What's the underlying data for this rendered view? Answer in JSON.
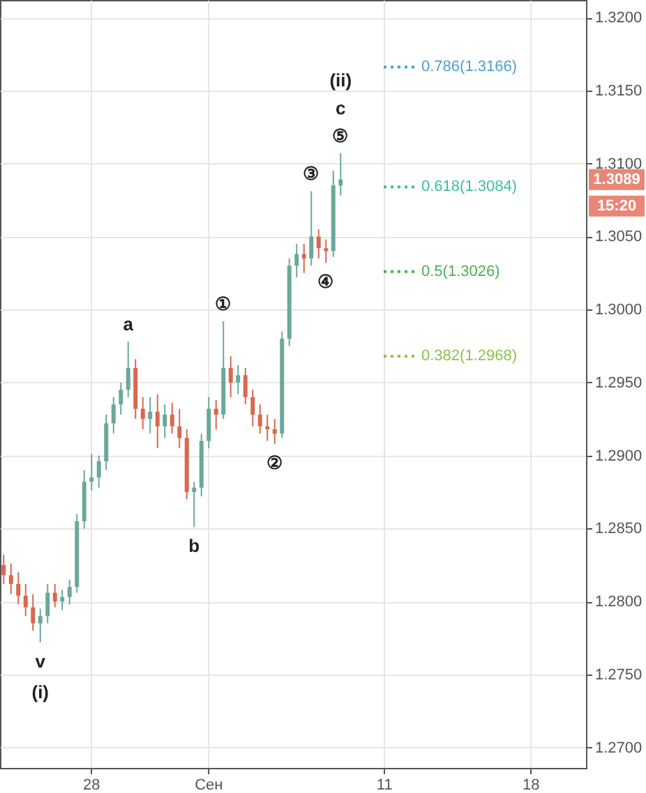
{
  "chart_data": {
    "type": "candlestick",
    "categories": [
      null,
      null,
      null,
      null,
      null,
      null,
      null,
      null,
      null,
      null,
      null,
      null,
      "28",
      null,
      null,
      null,
      null,
      null,
      null,
      null,
      null,
      null,
      null,
      null,
      null,
      null,
      null,
      null,
      "Сен",
      null,
      null,
      null,
      null,
      null,
      null,
      null,
      null,
      null,
      null,
      null,
      null,
      null,
      null,
      null,
      null,
      null,
      null,
      null,
      null,
      null,
      null,
      null,
      "11",
      null,
      null,
      null,
      null,
      null,
      null,
      null,
      null,
      null,
      null,
      null,
      null,
      null,
      null,
      null,
      null,
      null,
      null,
      null,
      "18",
      null,
      null,
      null,
      null,
      null,
      null,
      null
    ],
    "ohlc": [
      [
        1.2825,
        1.2832,
        1.2812,
        1.2818
      ],
      [
        1.2818,
        1.2826,
        1.2805,
        1.2812
      ],
      [
        1.2812,
        1.282,
        1.2798,
        1.2804
      ],
      [
        1.2804,
        1.2812,
        1.279,
        1.2796
      ],
      [
        1.2796,
        1.2805,
        1.278,
        1.2785
      ],
      [
        1.2785,
        1.2795,
        1.2772,
        1.279
      ],
      [
        1.279,
        1.2812,
        1.2785,
        1.2806
      ],
      [
        1.2806,
        1.2812,
        1.2796,
        1.28
      ],
      [
        1.28,
        1.2808,
        1.2794,
        1.2803
      ],
      [
        1.2803,
        1.2815,
        1.2798,
        1.281
      ],
      [
        1.281,
        1.286,
        1.2806,
        1.2855
      ],
      [
        1.2855,
        1.289,
        1.285,
        1.2882
      ],
      [
        1.2882,
        1.2901,
        1.2876,
        1.2885
      ],
      [
        1.2885,
        1.29,
        1.2878,
        1.2896
      ],
      [
        1.2896,
        1.2928,
        1.289,
        1.2922
      ],
      [
        1.2922,
        1.294,
        1.2915,
        1.2935
      ],
      [
        1.2935,
        1.295,
        1.2928,
        1.2945
      ],
      [
        1.2945,
        1.2978,
        1.294,
        1.296
      ],
      [
        1.296,
        1.2966,
        1.2925,
        1.2932
      ],
      [
        1.2932,
        1.294,
        1.2918,
        1.2925
      ],
      [
        1.2925,
        1.294,
        1.2915,
        1.293
      ],
      [
        1.293,
        1.2942,
        1.2905,
        1.292
      ],
      [
        1.292,
        1.2935,
        1.2912,
        1.2928
      ],
      [
        1.2928,
        1.2936,
        1.2915,
        1.292
      ],
      [
        1.292,
        1.2932,
        1.2905,
        1.2912
      ],
      [
        1.2912,
        1.2918,
        1.287,
        1.2875
      ],
      [
        1.2875,
        1.2882,
        1.2851,
        1.2878
      ],
      [
        1.2878,
        1.2915,
        1.2872,
        1.291
      ],
      [
        1.291,
        1.294,
        1.2905,
        1.2932
      ],
      [
        1.2932,
        1.2938,
        1.2918,
        1.2928
      ],
      [
        1.2928,
        1.2992,
        1.2925,
        1.296
      ],
      [
        1.296,
        1.2968,
        1.294,
        1.295
      ],
      [
        1.295,
        1.2962,
        1.2942,
        1.2955
      ],
      [
        1.2955,
        1.296,
        1.2935,
        1.294
      ],
      [
        1.294,
        1.2945,
        1.292,
        1.2928
      ],
      [
        1.2928,
        1.2935,
        1.2915,
        1.292
      ],
      [
        1.292,
        1.2928,
        1.291,
        1.2918
      ],
      [
        1.2918,
        1.2925,
        1.2908,
        1.2915
      ],
      [
        1.2915,
        1.2985,
        1.2912,
        1.298
      ],
      [
        1.298,
        1.3035,
        1.2975,
        1.303
      ],
      [
        1.303,
        1.3045,
        1.3022,
        1.3038
      ],
      [
        1.3038,
        1.3045,
        1.3025,
        1.3035
      ],
      [
        1.3035,
        1.3081,
        1.303,
        1.305
      ],
      [
        1.305,
        1.3055,
        1.3035,
        1.3042
      ],
      [
        1.3042,
        1.3048,
        1.3032,
        1.304
      ],
      [
        1.304,
        1.3095,
        1.3036,
        1.3085
      ],
      [
        1.3085,
        1.3107,
        1.3078,
        1.3089
      ],
      null,
      null,
      null,
      null,
      null,
      null,
      null,
      null,
      null,
      null,
      null,
      null,
      null,
      null,
      null,
      null,
      null,
      null,
      null,
      null,
      null,
      null,
      null,
      null,
      null,
      null,
      null,
      null,
      null,
      null,
      null,
      null,
      null
    ],
    "colors": [
      "#d9684e",
      "#d9684e",
      "#d9684e",
      "#d9684e",
      "#d9684e",
      "#6aa89a",
      "#6aa89a",
      "#d9684e",
      "#6aa89a",
      "#6aa89a",
      "#6aa89a",
      "#6aa89a",
      "#6aa89a",
      "#6aa89a",
      "#6aa89a",
      "#6aa89a",
      "#6aa89a",
      "#6aa89a",
      "#d9684e",
      "#d9684e",
      "#6aa89a",
      "#d9684e",
      "#6aa89a",
      "#d9684e",
      "#d9684e",
      "#d9684e",
      "#6aa89a",
      "#6aa89a",
      "#6aa89a",
      "#d9684e",
      "#6aa89a",
      "#d9684e",
      "#6aa89a",
      "#d9684e",
      "#d9684e",
      "#d9684e",
      "#d9684e",
      "#d9684e",
      "#6aa89a",
      "#6aa89a",
      "#6aa89a",
      "#d9684e",
      "#6aa89a",
      "#d9684e",
      "#d9684e",
      "#6aa89a",
      "#6aa89a",
      null,
      null,
      null,
      null,
      null,
      null,
      null,
      null,
      null,
      null,
      null,
      null,
      null,
      null,
      null,
      null,
      null,
      null,
      null,
      null,
      null,
      null,
      null,
      null,
      null,
      null,
      null,
      null,
      null,
      null,
      null,
      null,
      null
    ],
    "ylim": [
      1.2686,
      1.3212
    ],
    "yticks": [
      {
        "value": 1.27,
        "label": "1.2700"
      },
      {
        "value": 1.275,
        "label": "1.2750"
      },
      {
        "value": 1.28,
        "label": "1.2800"
      },
      {
        "value": 1.285,
        "label": "1.2850"
      },
      {
        "value": 1.29,
        "label": "1.2900"
      },
      {
        "value": 1.295,
        "label": "1.2950"
      },
      {
        "value": 1.3,
        "label": "1.3000"
      },
      {
        "value": 1.305,
        "label": "1.3050"
      },
      {
        "value": 1.31,
        "label": "1.3100"
      },
      {
        "value": 1.315,
        "label": "1.3150"
      },
      {
        "value": 1.32,
        "label": "1.3200"
      }
    ],
    "grid": true,
    "ref_lines": [
      {
        "axis": "y",
        "value": 1.3166,
        "label": "0.786(1.3166)",
        "color": "#4aa3c8",
        "line_style": "dotted"
      },
      {
        "axis": "y",
        "value": 1.3084,
        "label": "0.618(1.3084)",
        "color": "#3dbfa0",
        "line_style": "dotted"
      },
      {
        "axis": "y",
        "value": 1.3026,
        "label": "0.5(1.3026)",
        "color": "#4caf50",
        "line_style": "dotted"
      },
      {
        "axis": "y",
        "value": 1.2968,
        "label": "0.382(1.2968)",
        "color": "#8bc34a",
        "line_style": "dotted"
      }
    ],
    "annotations": [
      {
        "text": "v",
        "y": 1.2772
      },
      "(i)",
      {
        "text": "a",
        "y": 1.2978
      },
      {
        "text": "b",
        "y": 1.2851
      },
      {
        "text": "①",
        "y": 1.2992
      },
      {
        "text": "②",
        "y": 1.2908
      },
      {
        "text": "③",
        "y": 1.3081
      },
      {
        "text": "④",
        "y": 1.3032
      },
      {
        "text": "⑤",
        "y": 1.3107
      },
      "c",
      "(ii)",
      {
        "text": "1.3089",
        "y": 1.3089
      },
      "15:20"
    ]
  }
}
